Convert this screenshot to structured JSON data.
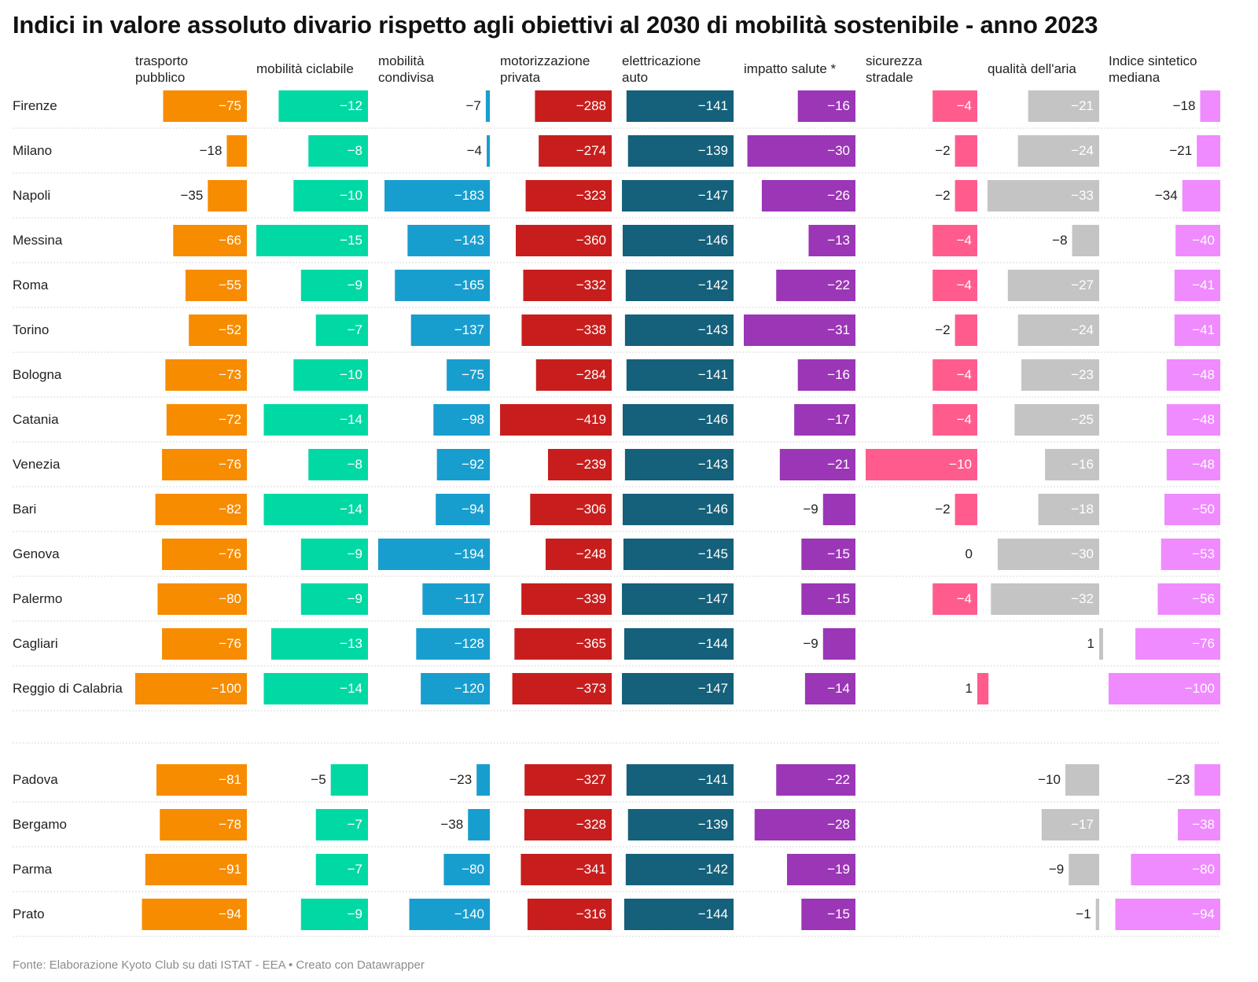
{
  "title": "Indici in valore assoluto divario rispetto agli obiettivi al 2030 di mobilità sostenibile - anno 2023",
  "footer": "Fonte: Elaborazione Kyoto Club su dati ISTAT - EEA • Creato con Datawrapper",
  "chart_data": {
    "type": "bar",
    "orientation": "horizontal",
    "layout": "small-multiples",
    "columns": [
      {
        "label": "trasporto pubblico",
        "color": "#f78c00"
      },
      {
        "label": "mobilità ciclabile",
        "color": "#00d9a3"
      },
      {
        "label": "mobilità condivisa",
        "color": "#189ece"
      },
      {
        "label": "motorizzazione privata",
        "color": "#c71e1d"
      },
      {
        "label": "elettricazione auto",
        "color": "#15607a"
      },
      {
        "label": "impatto salute *",
        "color": "#9b36b6"
      },
      {
        "label": "sicurezza stradale",
        "color": "#ff5c8d"
      },
      {
        "label": "qualità dell'aria",
        "color": "#c4c4c4"
      },
      {
        "label": "Indice sintetico mediana",
        "color": "#f08aff"
      }
    ],
    "groups": [
      {
        "rows": [
          {
            "city": "Firenze",
            "values": [
              -75,
              -12,
              -7,
              -288,
              -141,
              -16,
              -4,
              -21,
              -18
            ]
          },
          {
            "city": "Milano",
            "values": [
              -18,
              -8,
              -4,
              -274,
              -139,
              -30,
              -2,
              -24,
              -21
            ]
          },
          {
            "city": "Napoli",
            "values": [
              -35,
              -10,
              -183,
              -323,
              -147,
              -26,
              -2,
              -33,
              -34
            ]
          },
          {
            "city": "Messina",
            "values": [
              -66,
              -15,
              -143,
              -360,
              -146,
              -13,
              -4,
              -8,
              -40
            ]
          },
          {
            "city": "Roma",
            "values": [
              -55,
              -9,
              -165,
              -332,
              -142,
              -22,
              -4,
              -27,
              -41
            ]
          },
          {
            "city": "Torino",
            "values": [
              -52,
              -7,
              -137,
              -338,
              -143,
              -31,
              -2,
              -24,
              -41
            ]
          },
          {
            "city": "Bologna",
            "values": [
              -73,
              -10,
              -75,
              -284,
              -141,
              -16,
              -4,
              -23,
              -48
            ]
          },
          {
            "city": "Catania",
            "values": [
              -72,
              -14,
              -98,
              -419,
              -146,
              -17,
              -4,
              -25,
              -48
            ]
          },
          {
            "city": "Venezia",
            "values": [
              -76,
              -8,
              -92,
              -239,
              -143,
              -21,
              -10,
              -16,
              -48
            ]
          },
          {
            "city": "Bari",
            "values": [
              -82,
              -14,
              -94,
              -306,
              -146,
              -9,
              -2,
              -18,
              -50
            ]
          },
          {
            "city": "Genova",
            "values": [
              -76,
              -9,
              -194,
              -248,
              -145,
              -15,
              0,
              -30,
              -53
            ]
          },
          {
            "city": "Palermo",
            "values": [
              -80,
              -9,
              -117,
              -339,
              -147,
              -15,
              -4,
              -32,
              -56
            ]
          },
          {
            "city": "Cagliari",
            "values": [
              -76,
              -13,
              -128,
              -365,
              -144,
              -9,
              null,
              1,
              -76
            ]
          },
          {
            "city": "Reggio di Calabria",
            "values": [
              -100,
              -14,
              -120,
              -373,
              -147,
              -14,
              1,
              null,
              -100
            ]
          }
        ]
      },
      {
        "rows": [
          {
            "city": "Padova",
            "values": [
              -81,
              -5,
              -23,
              -327,
              -141,
              -22,
              null,
              -10,
              -23
            ]
          },
          {
            "city": "Bergamo",
            "values": [
              -78,
              -7,
              -38,
              -328,
              -139,
              -28,
              null,
              -17,
              -38
            ]
          },
          {
            "city": "Parma",
            "values": [
              -91,
              -7,
              -80,
              -341,
              -142,
              -19,
              null,
              -9,
              -80
            ]
          },
          {
            "city": "Prato",
            "values": [
              -94,
              -9,
              -140,
              -316,
              -144,
              -15,
              null,
              -1,
              -94
            ]
          }
        ]
      }
    ]
  }
}
